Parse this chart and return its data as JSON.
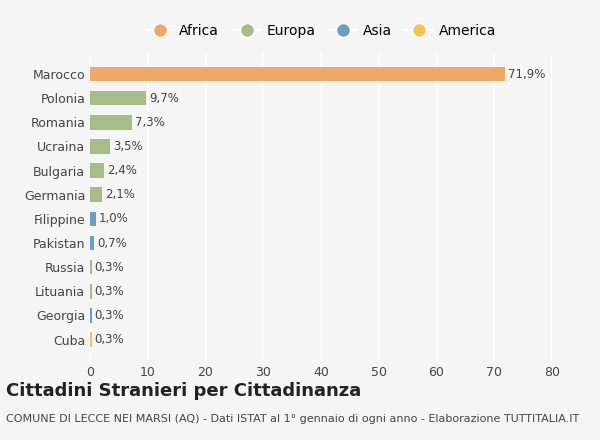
{
  "categories": [
    "Marocco",
    "Polonia",
    "Romania",
    "Ucraina",
    "Bulgaria",
    "Germania",
    "Filippine",
    "Pakistan",
    "Russia",
    "Lituania",
    "Georgia",
    "Cuba"
  ],
  "values": [
    71.9,
    9.7,
    7.3,
    3.5,
    2.4,
    2.1,
    1.0,
    0.7,
    0.3,
    0.3,
    0.3,
    0.3
  ],
  "labels": [
    "71,9%",
    "9,7%",
    "7,3%",
    "3,5%",
    "2,4%",
    "2,1%",
    "1,0%",
    "0,7%",
    "0,3%",
    "0,3%",
    "0,3%",
    "0,3%"
  ],
  "colors": [
    "#F0A868",
    "#A8BC8A",
    "#A8BC8A",
    "#A8BC8A",
    "#A8BC8A",
    "#A8BC8A",
    "#6A9EC5",
    "#6A9EC5",
    "#A8BC8A",
    "#A8BC8A",
    "#6A9EC5",
    "#F0C850"
  ],
  "legend": [
    {
      "label": "Africa",
      "color": "#F0A868"
    },
    {
      "label": "Europa",
      "color": "#A8BC8A"
    },
    {
      "label": "Asia",
      "color": "#6A9EC5"
    },
    {
      "label": "America",
      "color": "#F0C850"
    }
  ],
  "xlim": [
    0,
    80
  ],
  "xticks": [
    0,
    10,
    20,
    30,
    40,
    50,
    60,
    70,
    80
  ],
  "title": "Cittadini Stranieri per Cittadinanza",
  "subtitle": "COMUNE DI LECCE NEI MARSI (AQ) - Dati ISTAT al 1° gennaio di ogni anno - Elaborazione TUTTITALIA.IT",
  "background_color": "#F5F5F5",
  "bar_height": 0.6,
  "title_fontsize": 13,
  "subtitle_fontsize": 8,
  "label_fontsize": 8.5,
  "tick_fontsize": 9,
  "legend_fontsize": 10
}
